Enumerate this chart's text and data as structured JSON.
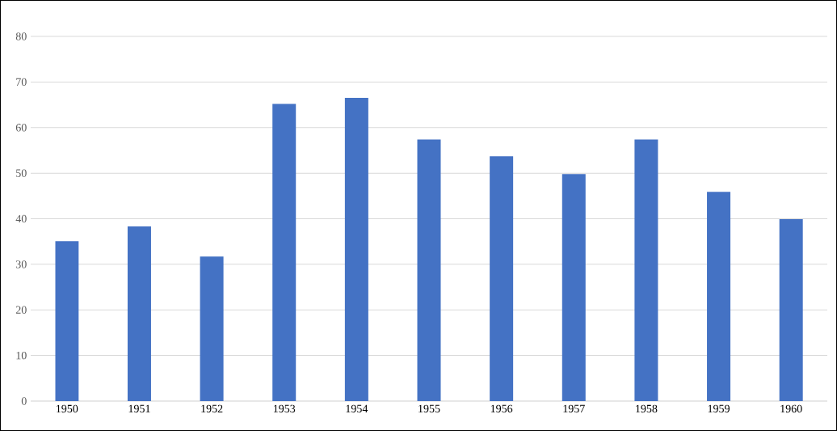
{
  "chart_data": {
    "type": "bar",
    "categories": [
      "1950",
      "1951",
      "1952",
      "1953",
      "1954",
      "1955",
      "1956",
      "1957",
      "1958",
      "1959",
      "1960"
    ],
    "values": [
      35.1,
      38.3,
      31.7,
      65.2,
      66.5,
      57.4,
      53.7,
      49.8,
      57.4,
      45.9,
      39.9
    ],
    "color": "#4472c4",
    "ylim": [
      0,
      80
    ],
    "yticks": [
      0,
      10,
      20,
      30,
      40,
      50,
      60,
      70,
      80
    ],
    "grid": "y"
  }
}
